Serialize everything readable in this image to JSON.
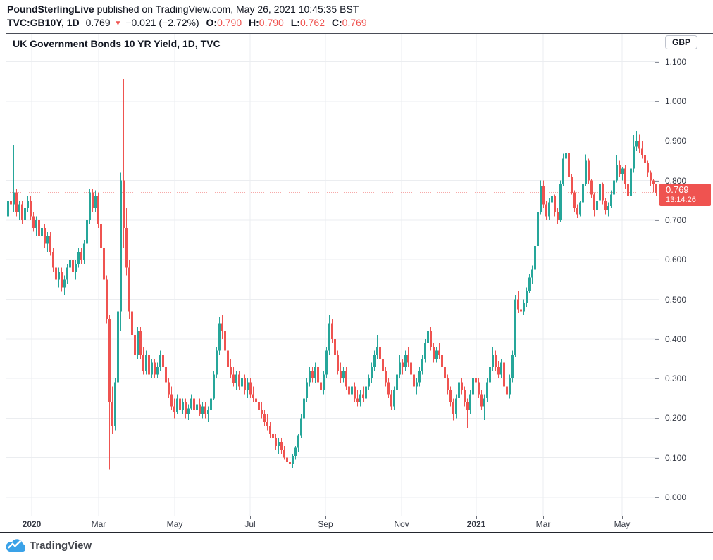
{
  "header": {
    "publisher": "PoundSterlingLive",
    "publish_info": " published on TradingView.com, May 26, 2021 10:45:35 BST",
    "symbol_interval": "TVC:GB10Y, 1D",
    "last_price": "0.769",
    "direction_icon": "▼",
    "change": "−0.021 (−2.72%)",
    "open_label": "O:",
    "open_value": "0.790",
    "high_label": "H:",
    "high_value": "0.790",
    "low_label": "L:",
    "low_value": "0.762",
    "close_label": "C:",
    "close_value": "0.769"
  },
  "chart": {
    "title": "UK Government Bonds 10 YR Yield, 1D, TVC",
    "currency_badge": "GBP",
    "price_tag": {
      "price": "0.769",
      "countdown": "13:14:26"
    }
  },
  "footer": {
    "logo_text": "TradingView"
  },
  "chart_data": {
    "type": "candlestick",
    "title": "UK Government Bonds 10 YR Yield, 1D, TVC",
    "symbol": "TVC:GB10Y",
    "interval": "1D",
    "exchange": "TVC",
    "currency": "GBP",
    "last_price": 0.769,
    "last_candle": {
      "open": 0.79,
      "high": 0.79,
      "low": 0.762,
      "close": 0.769
    },
    "change": -0.021,
    "change_pct": -2.72,
    "countdown": "13:14:26",
    "ylim": [
      0.0,
      1.1
    ],
    "grid": true,
    "up_color": "#26a69a",
    "down_color": "#ef5350",
    "price_line_color": "#ef5350",
    "grid_color": "#ebedf0",
    "y_ticks": [
      "0.000",
      "0.100",
      "0.200",
      "0.300",
      "0.400",
      "0.500",
      "0.600",
      "0.700",
      "0.800",
      "0.900",
      "1.000",
      "1.100"
    ],
    "x_ticks": [
      {
        "label": "2020",
        "x": 45,
        "bold": true
      },
      {
        "label": "Mar",
        "x": 140,
        "bold": false
      },
      {
        "label": "May",
        "x": 248,
        "bold": false
      },
      {
        "label": "Jul",
        "x": 355,
        "bold": false
      },
      {
        "label": "Sep",
        "x": 462,
        "bold": false
      },
      {
        "label": "Nov",
        "x": 570,
        "bold": false
      },
      {
        "label": "2021",
        "x": 676,
        "bold": true
      },
      {
        "label": "Mar",
        "x": 771,
        "bold": false
      },
      {
        "label": "May",
        "x": 883,
        "bold": false
      }
    ],
    "candles_ohlc": [
      [
        0.71,
        0.76,
        0.69,
        0.75
      ],
      [
        0.75,
        0.78,
        0.73,
        0.74
      ],
      [
        0.74,
        0.89,
        0.72,
        0.77
      ],
      [
        0.77,
        0.78,
        0.71,
        0.72
      ],
      [
        0.72,
        0.75,
        0.7,
        0.74
      ],
      [
        0.74,
        0.75,
        0.69,
        0.7
      ],
      [
        0.7,
        0.74,
        0.69,
        0.73
      ],
      [
        0.73,
        0.76,
        0.72,
        0.75
      ],
      [
        0.75,
        0.76,
        0.7,
        0.71
      ],
      [
        0.71,
        0.72,
        0.67,
        0.68
      ],
      [
        0.68,
        0.71,
        0.66,
        0.7
      ],
      [
        0.7,
        0.71,
        0.65,
        0.66
      ],
      [
        0.66,
        0.69,
        0.64,
        0.68
      ],
      [
        0.68,
        0.69,
        0.63,
        0.64
      ],
      [
        0.64,
        0.67,
        0.62,
        0.66
      ],
      [
        0.66,
        0.67,
        0.61,
        0.62
      ],
      [
        0.62,
        0.63,
        0.57,
        0.58
      ],
      [
        0.58,
        0.59,
        0.54,
        0.55
      ],
      [
        0.55,
        0.58,
        0.53,
        0.57
      ],
      [
        0.57,
        0.58,
        0.52,
        0.53
      ],
      [
        0.53,
        0.56,
        0.51,
        0.55
      ],
      [
        0.55,
        0.59,
        0.54,
        0.58
      ],
      [
        0.58,
        0.61,
        0.56,
        0.6
      ],
      [
        0.6,
        0.61,
        0.56,
        0.57
      ],
      [
        0.57,
        0.6,
        0.55,
        0.59
      ],
      [
        0.59,
        0.63,
        0.58,
        0.62
      ],
      [
        0.62,
        0.63,
        0.59,
        0.6
      ],
      [
        0.6,
        0.65,
        0.59,
        0.64
      ],
      [
        0.64,
        0.71,
        0.63,
        0.7
      ],
      [
        0.7,
        0.78,
        0.69,
        0.77
      ],
      [
        0.77,
        0.78,
        0.72,
        0.73
      ],
      [
        0.73,
        0.775,
        0.72,
        0.76
      ],
      [
        0.76,
        0.77,
        0.68,
        0.69
      ],
      [
        0.69,
        0.7,
        0.62,
        0.63
      ],
      [
        0.63,
        0.64,
        0.54,
        0.55
      ],
      [
        0.55,
        0.56,
        0.44,
        0.45
      ],
      [
        0.45,
        0.46,
        0.07,
        0.24
      ],
      [
        0.24,
        0.28,
        0.16,
        0.18
      ],
      [
        0.18,
        0.3,
        0.17,
        0.29
      ],
      [
        0.29,
        0.49,
        0.28,
        0.47
      ],
      [
        0.47,
        0.82,
        0.42,
        0.8
      ],
      [
        0.8,
        1.055,
        0.63,
        0.68
      ],
      [
        0.68,
        0.73,
        0.56,
        0.58
      ],
      [
        0.58,
        0.6,
        0.45,
        0.47
      ],
      [
        0.47,
        0.5,
        0.39,
        0.41
      ],
      [
        0.41,
        0.44,
        0.34,
        0.36
      ],
      [
        0.36,
        0.43,
        0.35,
        0.42
      ],
      [
        0.42,
        0.43,
        0.35,
        0.36
      ],
      [
        0.36,
        0.38,
        0.31,
        0.32
      ],
      [
        0.32,
        0.37,
        0.31,
        0.36
      ],
      [
        0.36,
        0.37,
        0.3,
        0.31
      ],
      [
        0.31,
        0.35,
        0.3,
        0.34
      ],
      [
        0.34,
        0.35,
        0.3,
        0.31
      ],
      [
        0.31,
        0.34,
        0.3,
        0.33
      ],
      [
        0.33,
        0.37,
        0.32,
        0.36
      ],
      [
        0.36,
        0.37,
        0.32,
        0.33
      ],
      [
        0.33,
        0.34,
        0.28,
        0.29
      ],
      [
        0.29,
        0.3,
        0.25,
        0.26
      ],
      [
        0.26,
        0.28,
        0.22,
        0.23
      ],
      [
        0.23,
        0.25,
        0.2,
        0.215
      ],
      [
        0.215,
        0.26,
        0.21,
        0.25
      ],
      [
        0.25,
        0.26,
        0.215,
        0.22
      ],
      [
        0.22,
        0.25,
        0.21,
        0.24
      ],
      [
        0.24,
        0.25,
        0.2,
        0.21
      ],
      [
        0.21,
        0.235,
        0.195,
        0.225
      ],
      [
        0.225,
        0.26,
        0.22,
        0.25
      ],
      [
        0.25,
        0.26,
        0.215,
        0.22
      ],
      [
        0.22,
        0.245,
        0.21,
        0.235
      ],
      [
        0.235,
        0.25,
        0.205,
        0.21
      ],
      [
        0.21,
        0.24,
        0.2,
        0.23
      ],
      [
        0.23,
        0.24,
        0.2,
        0.21
      ],
      [
        0.21,
        0.23,
        0.19,
        0.22
      ],
      [
        0.22,
        0.26,
        0.215,
        0.25
      ],
      [
        0.25,
        0.32,
        0.245,
        0.31
      ],
      [
        0.31,
        0.38,
        0.3,
        0.37
      ],
      [
        0.37,
        0.455,
        0.36,
        0.44
      ],
      [
        0.44,
        0.46,
        0.4,
        0.42
      ],
      [
        0.42,
        0.43,
        0.36,
        0.37
      ],
      [
        0.37,
        0.38,
        0.32,
        0.33
      ],
      [
        0.33,
        0.35,
        0.3,
        0.31
      ],
      [
        0.31,
        0.33,
        0.28,
        0.29
      ],
      [
        0.29,
        0.32,
        0.27,
        0.31
      ],
      [
        0.31,
        0.32,
        0.27,
        0.28
      ],
      [
        0.28,
        0.31,
        0.26,
        0.3
      ],
      [
        0.3,
        0.31,
        0.26,
        0.27
      ],
      [
        0.27,
        0.3,
        0.25,
        0.29
      ],
      [
        0.29,
        0.3,
        0.25,
        0.26
      ],
      [
        0.26,
        0.28,
        0.24,
        0.25
      ],
      [
        0.25,
        0.27,
        0.23,
        0.24
      ],
      [
        0.24,
        0.25,
        0.21,
        0.22
      ],
      [
        0.22,
        0.24,
        0.2,
        0.21
      ],
      [
        0.21,
        0.22,
        0.18,
        0.19
      ],
      [
        0.19,
        0.21,
        0.17,
        0.18
      ],
      [
        0.18,
        0.19,
        0.15,
        0.16
      ],
      [
        0.16,
        0.18,
        0.14,
        0.15
      ],
      [
        0.15,
        0.16,
        0.12,
        0.13
      ],
      [
        0.13,
        0.15,
        0.11,
        0.14
      ],
      [
        0.14,
        0.15,
        0.11,
        0.12
      ],
      [
        0.12,
        0.13,
        0.095,
        0.1
      ],
      [
        0.1,
        0.12,
        0.08,
        0.09
      ],
      [
        0.09,
        0.1,
        0.065,
        0.085
      ],
      [
        0.085,
        0.11,
        0.075,
        0.105
      ],
      [
        0.105,
        0.13,
        0.095,
        0.125
      ],
      [
        0.125,
        0.16,
        0.115,
        0.155
      ],
      [
        0.155,
        0.21,
        0.15,
        0.2
      ],
      [
        0.2,
        0.26,
        0.19,
        0.25
      ],
      [
        0.25,
        0.3,
        0.24,
        0.29
      ],
      [
        0.29,
        0.33,
        0.28,
        0.32
      ],
      [
        0.32,
        0.33,
        0.29,
        0.3
      ],
      [
        0.3,
        0.34,
        0.29,
        0.33
      ],
      [
        0.33,
        0.34,
        0.28,
        0.29
      ],
      [
        0.29,
        0.31,
        0.26,
        0.27
      ],
      [
        0.27,
        0.32,
        0.26,
        0.31
      ],
      [
        0.31,
        0.38,
        0.3,
        0.37
      ],
      [
        0.37,
        0.46,
        0.36,
        0.44
      ],
      [
        0.44,
        0.45,
        0.39,
        0.4
      ],
      [
        0.4,
        0.41,
        0.35,
        0.36
      ],
      [
        0.36,
        0.37,
        0.31,
        0.32
      ],
      [
        0.32,
        0.34,
        0.29,
        0.3
      ],
      [
        0.3,
        0.33,
        0.29,
        0.32
      ],
      [
        0.32,
        0.33,
        0.27,
        0.28
      ],
      [
        0.28,
        0.3,
        0.25,
        0.26
      ],
      [
        0.26,
        0.29,
        0.25,
        0.28
      ],
      [
        0.28,
        0.29,
        0.24,
        0.25
      ],
      [
        0.25,
        0.27,
        0.23,
        0.24
      ],
      [
        0.24,
        0.27,
        0.23,
        0.26
      ],
      [
        0.26,
        0.28,
        0.24,
        0.25
      ],
      [
        0.25,
        0.29,
        0.24,
        0.28
      ],
      [
        0.28,
        0.31,
        0.27,
        0.3
      ],
      [
        0.3,
        0.34,
        0.29,
        0.33
      ],
      [
        0.33,
        0.37,
        0.32,
        0.36
      ],
      [
        0.36,
        0.41,
        0.35,
        0.38
      ],
      [
        0.38,
        0.39,
        0.34,
        0.35
      ],
      [
        0.35,
        0.36,
        0.31,
        0.32
      ],
      [
        0.32,
        0.33,
        0.28,
        0.29
      ],
      [
        0.29,
        0.3,
        0.25,
        0.26
      ],
      [
        0.26,
        0.27,
        0.22,
        0.23
      ],
      [
        0.23,
        0.28,
        0.22,
        0.27
      ],
      [
        0.27,
        0.32,
        0.26,
        0.31
      ],
      [
        0.31,
        0.36,
        0.3,
        0.34
      ],
      [
        0.34,
        0.35,
        0.31,
        0.33
      ],
      [
        0.33,
        0.37,
        0.32,
        0.36
      ],
      [
        0.36,
        0.38,
        0.33,
        0.34
      ],
      [
        0.34,
        0.35,
        0.3,
        0.31
      ],
      [
        0.31,
        0.32,
        0.27,
        0.28
      ],
      [
        0.28,
        0.3,
        0.26,
        0.29
      ],
      [
        0.29,
        0.33,
        0.28,
        0.32
      ],
      [
        0.32,
        0.36,
        0.31,
        0.35
      ],
      [
        0.35,
        0.4,
        0.34,
        0.39
      ],
      [
        0.39,
        0.445,
        0.38,
        0.42
      ],
      [
        0.42,
        0.43,
        0.37,
        0.38
      ],
      [
        0.38,
        0.39,
        0.34,
        0.35
      ],
      [
        0.35,
        0.38,
        0.34,
        0.37
      ],
      [
        0.37,
        0.39,
        0.35,
        0.36
      ],
      [
        0.36,
        0.37,
        0.32,
        0.33
      ],
      [
        0.33,
        0.34,
        0.29,
        0.3
      ],
      [
        0.3,
        0.31,
        0.26,
        0.27
      ],
      [
        0.27,
        0.28,
        0.23,
        0.24
      ],
      [
        0.24,
        0.25,
        0.195,
        0.21
      ],
      [
        0.21,
        0.26,
        0.2,
        0.25
      ],
      [
        0.25,
        0.3,
        0.24,
        0.29
      ],
      [
        0.29,
        0.3,
        0.26,
        0.27
      ],
      [
        0.27,
        0.28,
        0.23,
        0.24
      ],
      [
        0.24,
        0.25,
        0.175,
        0.22
      ],
      [
        0.22,
        0.27,
        0.21,
        0.26
      ],
      [
        0.26,
        0.31,
        0.25,
        0.3
      ],
      [
        0.3,
        0.32,
        0.28,
        0.29
      ],
      [
        0.29,
        0.3,
        0.25,
        0.26
      ],
      [
        0.26,
        0.27,
        0.22,
        0.23
      ],
      [
        0.23,
        0.26,
        0.195,
        0.25
      ],
      [
        0.25,
        0.3,
        0.24,
        0.29
      ],
      [
        0.29,
        0.34,
        0.28,
        0.33
      ],
      [
        0.33,
        0.38,
        0.32,
        0.36
      ],
      [
        0.36,
        0.37,
        0.32,
        0.33
      ],
      [
        0.33,
        0.345,
        0.3,
        0.31
      ],
      [
        0.31,
        0.35,
        0.3,
        0.34
      ],
      [
        0.34,
        0.35,
        0.27,
        0.28
      ],
      [
        0.28,
        0.29,
        0.243,
        0.26
      ],
      [
        0.26,
        0.31,
        0.25,
        0.3
      ],
      [
        0.3,
        0.37,
        0.29,
        0.36
      ],
      [
        0.36,
        0.51,
        0.355,
        0.5
      ],
      [
        0.5,
        0.52,
        0.465,
        0.475
      ],
      [
        0.475,
        0.49,
        0.455,
        0.47
      ],
      [
        0.47,
        0.5,
        0.46,
        0.49
      ],
      [
        0.49,
        0.53,
        0.48,
        0.52
      ],
      [
        0.52,
        0.565,
        0.515,
        0.555
      ],
      [
        0.555,
        0.585,
        0.54,
        0.575
      ],
      [
        0.575,
        0.645,
        0.57,
        0.635
      ],
      [
        0.635,
        0.73,
        0.63,
        0.72
      ],
      [
        0.72,
        0.8,
        0.715,
        0.785
      ],
      [
        0.785,
        0.8,
        0.73,
        0.74
      ],
      [
        0.74,
        0.75,
        0.7,
        0.71
      ],
      [
        0.71,
        0.755,
        0.7,
        0.745
      ],
      [
        0.745,
        0.775,
        0.73,
        0.76
      ],
      [
        0.76,
        0.765,
        0.71,
        0.72
      ],
      [
        0.72,
        0.73,
        0.69,
        0.7
      ],
      [
        0.7,
        0.8,
        0.695,
        0.79
      ],
      [
        0.79,
        0.868,
        0.785,
        0.855
      ],
      [
        0.855,
        0.909,
        0.78,
        0.87
      ],
      [
        0.87,
        0.875,
        0.805,
        0.81
      ],
      [
        0.81,
        0.815,
        0.765,
        0.77
      ],
      [
        0.77,
        0.775,
        0.72,
        0.73
      ],
      [
        0.73,
        0.74,
        0.705,
        0.715
      ],
      [
        0.715,
        0.75,
        0.71,
        0.745
      ],
      [
        0.745,
        0.8,
        0.74,
        0.79
      ],
      [
        0.79,
        0.866,
        0.785,
        0.85
      ],
      [
        0.85,
        0.855,
        0.79,
        0.8
      ],
      [
        0.8,
        0.805,
        0.755,
        0.765
      ],
      [
        0.765,
        0.77,
        0.71,
        0.725
      ],
      [
        0.725,
        0.76,
        0.72,
        0.75
      ],
      [
        0.75,
        0.8,
        0.745,
        0.79
      ],
      [
        0.79,
        0.795,
        0.74,
        0.75
      ],
      [
        0.75,
        0.755,
        0.715,
        0.725
      ],
      [
        0.725,
        0.745,
        0.71,
        0.735
      ],
      [
        0.735,
        0.775,
        0.73,
        0.765
      ],
      [
        0.765,
        0.81,
        0.76,
        0.8
      ],
      [
        0.8,
        0.865,
        0.795,
        0.84
      ],
      [
        0.84,
        0.85,
        0.81,
        0.815
      ],
      [
        0.815,
        0.835,
        0.8,
        0.83
      ],
      [
        0.83,
        0.84,
        0.78,
        0.79
      ],
      [
        0.79,
        0.8,
        0.74,
        0.76
      ],
      [
        0.76,
        0.84,
        0.755,
        0.83
      ],
      [
        0.83,
        0.915,
        0.82,
        0.885
      ],
      [
        0.885,
        0.925,
        0.875,
        0.9
      ],
      [
        0.9,
        0.916,
        0.87,
        0.88
      ],
      [
        0.88,
        0.9,
        0.855,
        0.865
      ],
      [
        0.865,
        0.875,
        0.835,
        0.845
      ],
      [
        0.845,
        0.85,
        0.81,
        0.82
      ],
      [
        0.82,
        0.825,
        0.785,
        0.8
      ],
      [
        0.8,
        0.805,
        0.77,
        0.79
      ],
      [
        0.79,
        0.79,
        0.762,
        0.769
      ]
    ]
  }
}
